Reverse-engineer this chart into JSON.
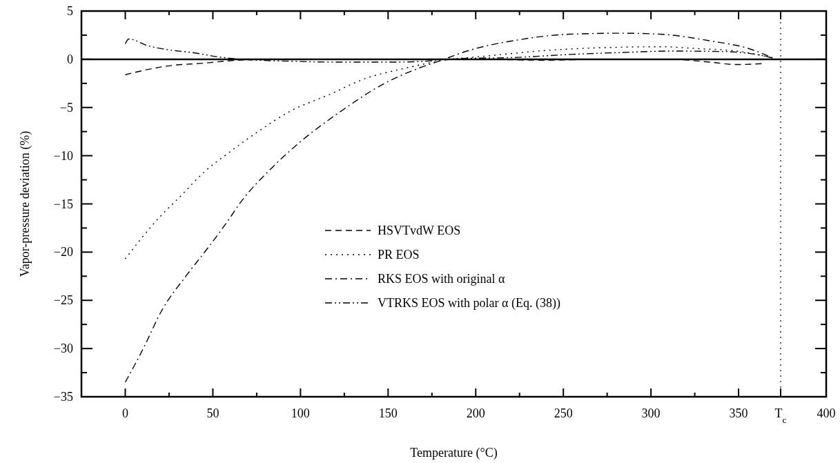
{
  "chart_data": {
    "type": "line",
    "xlabel": "Temperature (°C)",
    "ylabel": "Vapor-pressure deviation (%)",
    "xlim": [
      -25,
      400
    ],
    "ylim": [
      -35,
      5
    ],
    "xticks": [
      0,
      {
        "value": 25,
        "label": null
      },
      50,
      {
        "value": 75,
        "label": null
      },
      100,
      {
        "value": 125,
        "label": null
      },
      150,
      {
        "value": 175,
        "label": null
      },
      200,
      {
        "value": 225,
        "label": null
      },
      250,
      {
        "value": 275,
        "label": null
      },
      300,
      {
        "value": 325,
        "label": null
      },
      350,
      {
        "value": 374,
        "label": "T$_{c}$"
      },
      400
    ],
    "yticks": [
      -35,
      {
        "value": -32.5,
        "label": null
      },
      -30,
      {
        "value": -27.5,
        "label": null
      },
      -25,
      {
        "value": -22.5,
        "label": null
      },
      -20,
      {
        "value": -17.5,
        "label": null
      },
      -15,
      {
        "value": -12.5,
        "label": null
      },
      -10,
      {
        "value": -7.5,
        "label": null
      },
      -5,
      {
        "value": -2.5,
        "label": null
      },
      0,
      {
        "value": 2.5,
        "label": null
      },
      5
    ],
    "grid": false,
    "legend": "center",
    "marker": "none",
    "ref_lines": [
      {
        "axis": "y",
        "value": 0,
        "color": "#000000",
        "line_style": "solid"
      },
      {
        "axis": "x",
        "value": 374,
        "color": "#000000",
        "line_style": "dotted"
      }
    ],
    "series": [
      {
        "name": "HSVTvdW EOS",
        "color": "#000000",
        "line_style": "dashed",
        "x": [
          0,
          24,
          45,
          60,
          80,
          150,
          200,
          240,
          270,
          310,
          334,
          349,
          364
        ],
        "values": [
          -1.6,
          -0.7,
          -0.4,
          -0.15,
          0,
          0,
          0,
          -0.1,
          0,
          0,
          -0.3,
          -0.55,
          -0.45
        ]
      },
      {
        "name": "PR EOS",
        "color": "#000000",
        "line_style": "dotted",
        "x": [
          0,
          16,
          21,
          31,
          45,
          59,
          75,
          94,
          116,
          137,
          158,
          179,
          210,
          239,
          283,
          305,
          327,
          349,
          363,
          370
        ],
        "values": [
          -20.7,
          -17.1,
          -16.1,
          -14.3,
          -11.7,
          -9.7,
          -7.6,
          -5.4,
          -3.7,
          -2,
          -1,
          -0.2,
          0.4,
          0.9,
          1.25,
          1.3,
          1.1,
          0.85,
          0.4,
          0.1
        ]
      },
      {
        "name": "RKS EOS with original α",
        "color": "#000000",
        "line_style": "dashdot",
        "x": [
          0,
          10,
          21,
          35,
          47,
          58,
          66,
          84,
          101,
          123,
          148,
          165,
          179,
          195,
          224,
          254,
          283,
          305,
          334,
          356,
          370
        ],
        "values": [
          -33.5,
          -30.1,
          -26,
          -22.4,
          -19.6,
          -16.9,
          -14.8,
          -11.2,
          -8.4,
          -5.4,
          -2.5,
          -1.1,
          -0.2,
          0.85,
          2,
          2.6,
          2.7,
          2.6,
          1.9,
          1.1,
          0.1
        ]
      },
      {
        "name": "VTRKS EOS with polar α (Eq. (38))",
        "color": "#000000",
        "line_style": "dashdotdot",
        "x": [
          0,
          2,
          13,
          24,
          38,
          55,
          66,
          94,
          123,
          151,
          172,
          187,
          224,
          254,
          283,
          312,
          341,
          363,
          370
        ],
        "values": [
          1.6,
          2.1,
          1.4,
          1,
          0.7,
          0.2,
          0,
          -0.2,
          -0.3,
          -0.3,
          -0.2,
          0.05,
          0.2,
          0.5,
          0.7,
          0.85,
          0.8,
          0.4,
          0.1
        ]
      }
    ]
  }
}
